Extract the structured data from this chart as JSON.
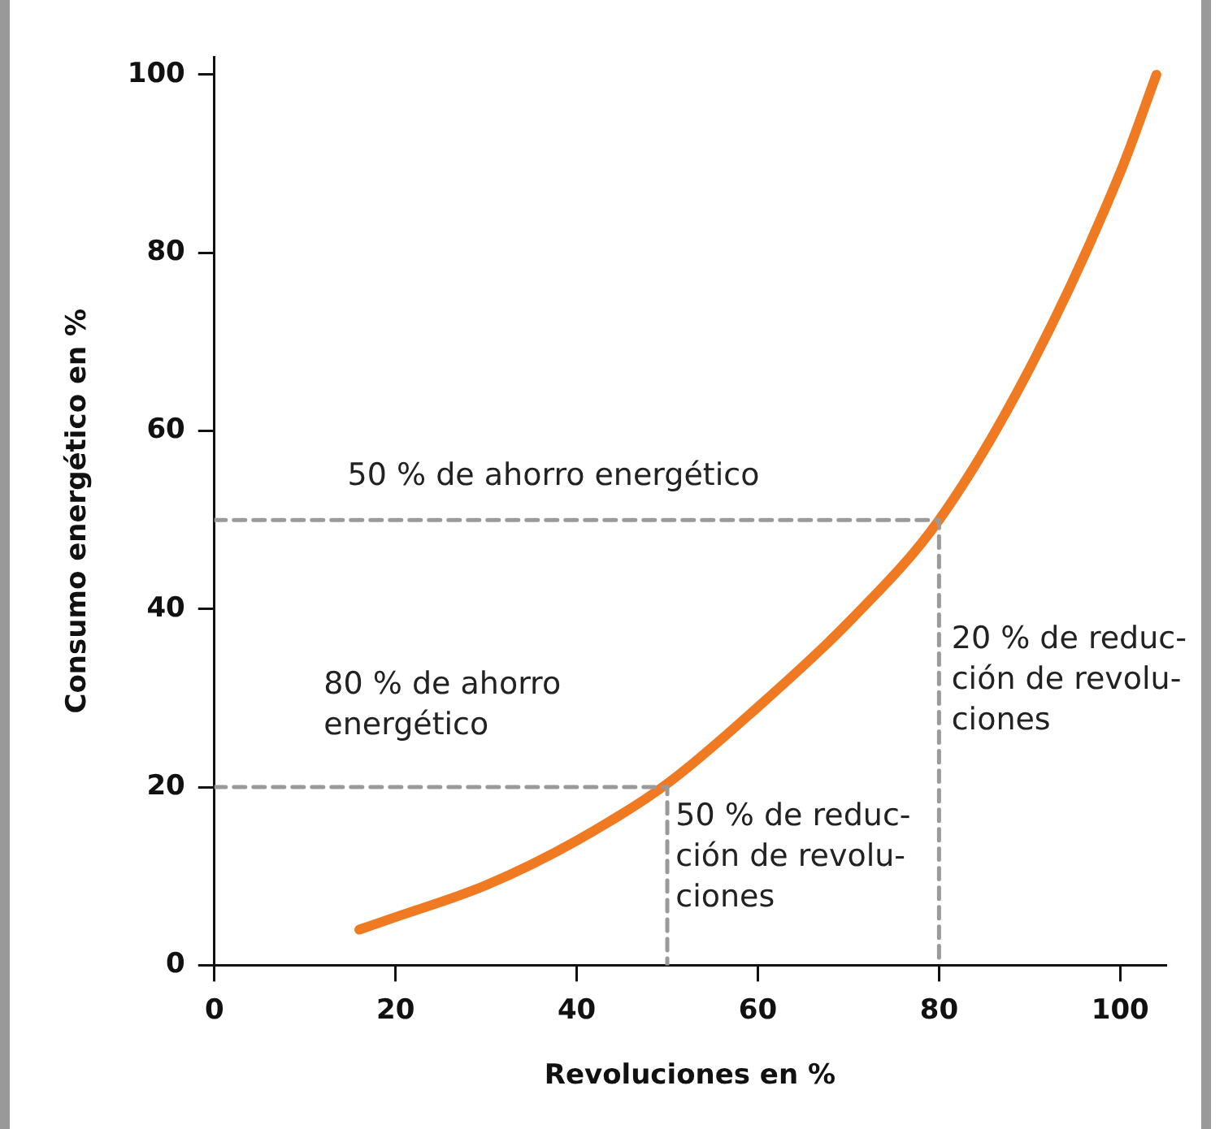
{
  "chart_data": {
    "type": "line",
    "xlabel": "Revoluciones en %",
    "ylabel": "Consumo energético en %",
    "xlim": [
      0,
      105
    ],
    "ylim": [
      0,
      102
    ],
    "xticks": [
      0,
      20,
      40,
      60,
      80,
      100
    ],
    "yticks": [
      0,
      20,
      40,
      60,
      80,
      100
    ],
    "grid": false,
    "legend": false,
    "marker": "none",
    "series": [
      {
        "color": "#f07a22",
        "line_style": "solid",
        "x": [
          16,
          20,
          30,
          40,
          50,
          60,
          70,
          80,
          90,
          100,
          104
        ],
        "values": [
          4,
          5.4,
          9,
          14,
          20.4,
          29,
          38.5,
          50,
          67,
          89,
          100
        ]
      },
      {
        "color": "#9a9a9a",
        "line_style": "dashed",
        "x": [
          0,
          80,
          80
        ],
        "values": [
          50,
          50,
          0
        ]
      },
      {
        "color": "#9a9a9a",
        "line_style": "dashed",
        "x": [
          0,
          50,
          50
        ],
        "values": [
          20,
          20,
          0
        ]
      }
    ],
    "annotations": [
      "50 % de ahorro energético",
      "80 % de ahorro\nenergético",
      "50 % de reduc-\nción de revolu-\nciones",
      "20 % de reduc-\nción de revolu-\nciones"
    ]
  }
}
